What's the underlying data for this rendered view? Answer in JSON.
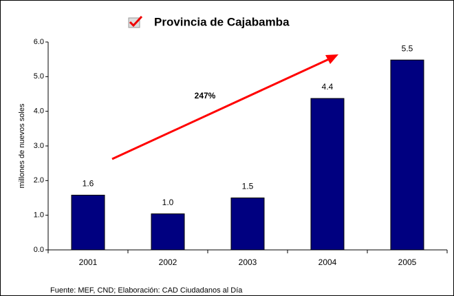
{
  "chart_data": {
    "type": "bar",
    "title": "Provincia de Cajabamba",
    "y_label": "millones de nuevos soles",
    "annotation": "247%",
    "source": "Fuente: MEF, CND; Elaboración: CAD Ciudadanos al Día",
    "categories": [
      "2001",
      "2002",
      "2003",
      "2004",
      "2005"
    ],
    "values": [
      1.58,
      1.04,
      1.5,
      4.37,
      5.48
    ],
    "value_labels": [
      "1.6",
      "1.0",
      "1.5",
      "4.4",
      "5.5"
    ],
    "color": "#000080",
    "ylim": [
      0,
      6
    ],
    "yticks": [
      {
        "value": 0,
        "label": "0.0"
      },
      {
        "value": 1,
        "label": "1.0"
      },
      {
        "value": 2,
        "label": "2.0"
      },
      {
        "value": 3,
        "label": "3.0"
      },
      {
        "value": 4,
        "label": "4.0"
      },
      {
        "value": 5,
        "label": "5.0"
      },
      {
        "value": 6,
        "label": "6.0"
      }
    ],
    "grid": false
  }
}
